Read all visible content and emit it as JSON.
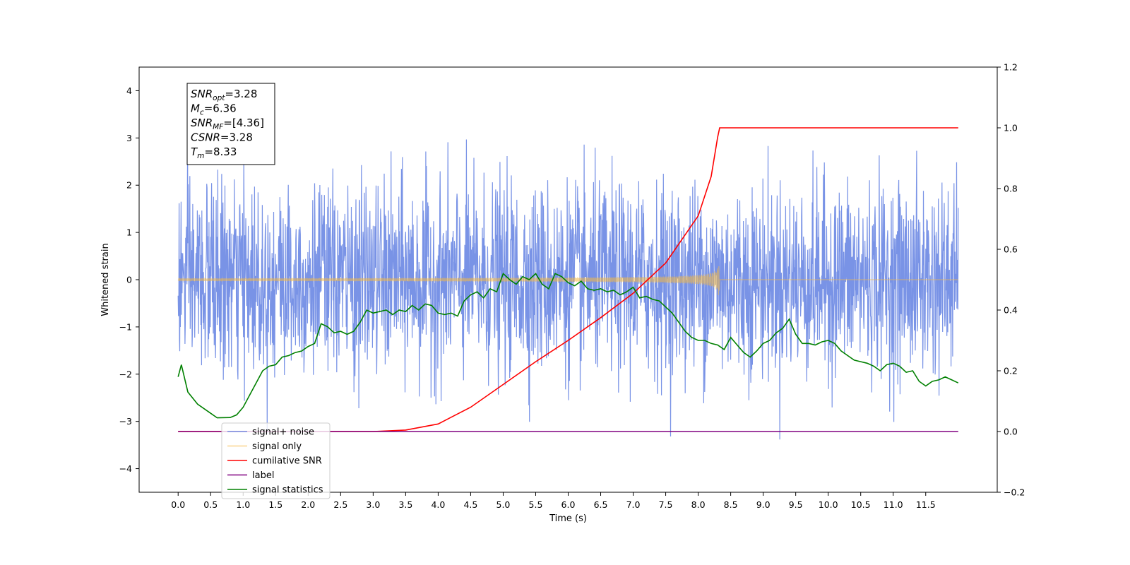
{
  "chart_data": {
    "type": "line",
    "title": "",
    "xlabel": "Time (s)",
    "ylabel": "Whitened strain",
    "xlim": [
      -0.6,
      12.6
    ],
    "ylim": [
      -4.5,
      4.5
    ],
    "y2lim": [
      -0.2,
      1.2
    ],
    "x_ticks": [
      "0.0",
      "0.5",
      "1.0",
      "1.5",
      "2.0",
      "2.5",
      "3.0",
      "3.5",
      "4.0",
      "4.5",
      "5.0",
      "5.5",
      "6.0",
      "6.5",
      "7.0",
      "7.5",
      "8.0",
      "8.5",
      "9.0",
      "9.5",
      "10.0",
      "10.5",
      "11.0",
      "11.5"
    ],
    "y_ticks": [
      "4",
      "3",
      "2",
      "1",
      "0",
      "−1",
      "−2",
      "−3",
      "−4"
    ],
    "y2_ticks": [
      "1.2",
      "1.0",
      "0.8",
      "0.6",
      "0.4",
      "0.2",
      "0.0",
      "−0.2"
    ],
    "grid": false,
    "legend_position": "lower-left",
    "annotation": [
      {
        "base": "SNR",
        "sub": "opt",
        "value": "=3.28"
      },
      {
        "base": "M",
        "sub": "c",
        "value": "=6.36"
      },
      {
        "base": "SNR",
        "sub": "MF",
        "value": "=[4.36]"
      },
      {
        "base": "CSNR",
        "sub": "",
        "value": "=3.28"
      },
      {
        "base": "T",
        "sub": "m",
        "value": "=8.33"
      }
    ],
    "series": [
      {
        "name": "signal+ noise",
        "color": "#5b7be0",
        "axis": "left",
        "kind": "noise",
        "x_range": [
          0,
          12
        ],
        "amplitude": 1.0
      },
      {
        "name": "signal only",
        "color": "#f5b942",
        "axis": "left",
        "kind": "chirp",
        "x_range": [
          0,
          12
        ],
        "peak_time": 8.33,
        "peak_amplitude": 0.38
      },
      {
        "name": "cumilative SNR",
        "color": "#ff0000",
        "axis": "right",
        "x": [
          0,
          3.0,
          3.5,
          4.0,
          4.5,
          5.0,
          5.5,
          6.0,
          6.5,
          7.0,
          7.5,
          8.0,
          8.2,
          8.3,
          8.33,
          12.0
        ],
        "y": [
          0,
          0,
          0.005,
          0.025,
          0.08,
          0.155,
          0.23,
          0.3,
          0.375,
          0.455,
          0.555,
          0.71,
          0.84,
          0.97,
          1.0,
          1.0
        ]
      },
      {
        "name": "label",
        "color": "#800080",
        "axis": "right",
        "x": [
          0,
          12
        ],
        "y": [
          0,
          0
        ]
      },
      {
        "name": "signal statistics",
        "color": "#008000",
        "axis": "right",
        "x": [
          0,
          0.05,
          0.15,
          0.3,
          0.5,
          0.6,
          0.8,
          0.9,
          1.0,
          1.1,
          1.2,
          1.3,
          1.4,
          1.5,
          1.6,
          1.7,
          1.8,
          1.9,
          2.0,
          2.1,
          2.2,
          2.3,
          2.4,
          2.5,
          2.6,
          2.7,
          2.8,
          2.9,
          3.0,
          3.1,
          3.2,
          3.3,
          3.4,
          3.5,
          3.6,
          3.7,
          3.8,
          3.9,
          4.0,
          4.1,
          4.2,
          4.3,
          4.4,
          4.5,
          4.6,
          4.7,
          4.8,
          4.9,
          5.0,
          5.1,
          5.2,
          5.3,
          5.4,
          5.5,
          5.6,
          5.7,
          5.8,
          5.9,
          6.0,
          6.1,
          6.2,
          6.3,
          6.4,
          6.5,
          6.6,
          6.7,
          6.8,
          6.9,
          7.0,
          7.1,
          7.2,
          7.3,
          7.4,
          7.5,
          7.6,
          7.7,
          7.8,
          7.9,
          8.0,
          8.1,
          8.2,
          8.3,
          8.4,
          8.5,
          8.6,
          8.7,
          8.8,
          8.9,
          9.0,
          9.1,
          9.2,
          9.3,
          9.4,
          9.5,
          9.6,
          9.7,
          9.8,
          9.9,
          10.0,
          10.1,
          10.2,
          10.3,
          10.4,
          10.5,
          10.6,
          10.7,
          10.8,
          10.9,
          11.0,
          11.1,
          11.2,
          11.3,
          11.4,
          11.5,
          11.6,
          11.7,
          11.8,
          11.9,
          12.0
        ],
        "y": [
          0.18,
          0.22,
          0.13,
          0.09,
          0.06,
          0.045,
          0.046,
          0.055,
          0.08,
          0.12,
          0.16,
          0.2,
          0.215,
          0.22,
          0.245,
          0.25,
          0.26,
          0.265,
          0.28,
          0.29,
          0.355,
          0.345,
          0.325,
          0.33,
          0.32,
          0.33,
          0.36,
          0.4,
          0.39,
          0.395,
          0.4,
          0.385,
          0.4,
          0.395,
          0.415,
          0.4,
          0.42,
          0.415,
          0.39,
          0.385,
          0.39,
          0.38,
          0.43,
          0.45,
          0.46,
          0.44,
          0.47,
          0.46,
          0.52,
          0.5,
          0.485,
          0.51,
          0.5,
          0.52,
          0.485,
          0.47,
          0.52,
          0.51,
          0.49,
          0.48,
          0.495,
          0.47,
          0.465,
          0.47,
          0.46,
          0.465,
          0.45,
          0.46,
          0.475,
          0.44,
          0.445,
          0.435,
          0.43,
          0.41,
          0.39,
          0.36,
          0.33,
          0.31,
          0.3,
          0.3,
          0.29,
          0.285,
          0.27,
          0.31,
          0.285,
          0.26,
          0.245,
          0.265,
          0.29,
          0.3,
          0.325,
          0.34,
          0.37,
          0.32,
          0.29,
          0.29,
          0.285,
          0.295,
          0.3,
          0.29,
          0.265,
          0.25,
          0.235,
          0.23,
          0.225,
          0.215,
          0.2,
          0.22,
          0.225,
          0.215,
          0.195,
          0.2,
          0.165,
          0.15,
          0.165,
          0.17,
          0.18,
          0.17,
          0.16
        ]
      }
    ]
  }
}
